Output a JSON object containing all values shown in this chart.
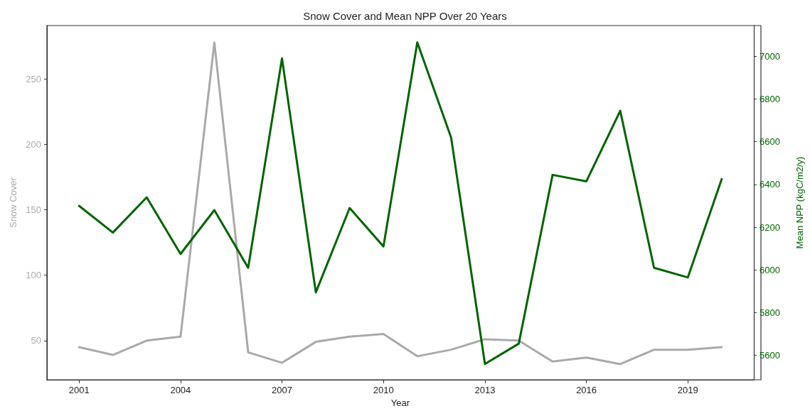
{
  "chart_data": {
    "type": "line",
    "title": "Snow Cover and Mean NPP Over 20 Years",
    "xlabel": "Year",
    "ylabel": "Snow Cover",
    "y2label": "Mean NPP (kgC/m2/y)",
    "x": [
      2001,
      2002,
      2003,
      2004,
      2005,
      2006,
      2007,
      2008,
      2009,
      2010,
      2011,
      2012,
      2013,
      2014,
      2015,
      2016,
      2017,
      2018,
      2019,
      2020
    ],
    "series": [
      {
        "color": "#a9a9a9",
        "values": [
          45,
          39,
          50,
          53,
          278,
          41,
          33,
          49,
          53,
          55,
          38,
          43,
          51,
          50,
          34,
          37,
          32,
          43,
          43,
          45
        ]
      },
      {
        "color": "#006400",
        "axis": "y2",
        "values": [
          6300,
          6175,
          6340,
          6075,
          6280,
          6010,
          6990,
          5895,
          6290,
          6110,
          7065,
          6620,
          5560,
          5655,
          6445,
          6415,
          6745,
          6010,
          5965,
          6425
        ]
      }
    ],
    "xlim": [
      2000.05,
      2020.95
    ],
    "xticks": [
      2001,
      2004,
      2007,
      2010,
      2013,
      2016,
      2019
    ],
    "ylim": [
      20,
      291
    ],
    "yticks": [
      50,
      100,
      150,
      200,
      250
    ],
    "y2lim": [
      5486,
      7144
    ],
    "y2ticks": [
      5600,
      5800,
      6000,
      6200,
      6400,
      6600,
      6800,
      7000
    ],
    "grid": false,
    "marker": "none",
    "line_style": "solid"
  }
}
